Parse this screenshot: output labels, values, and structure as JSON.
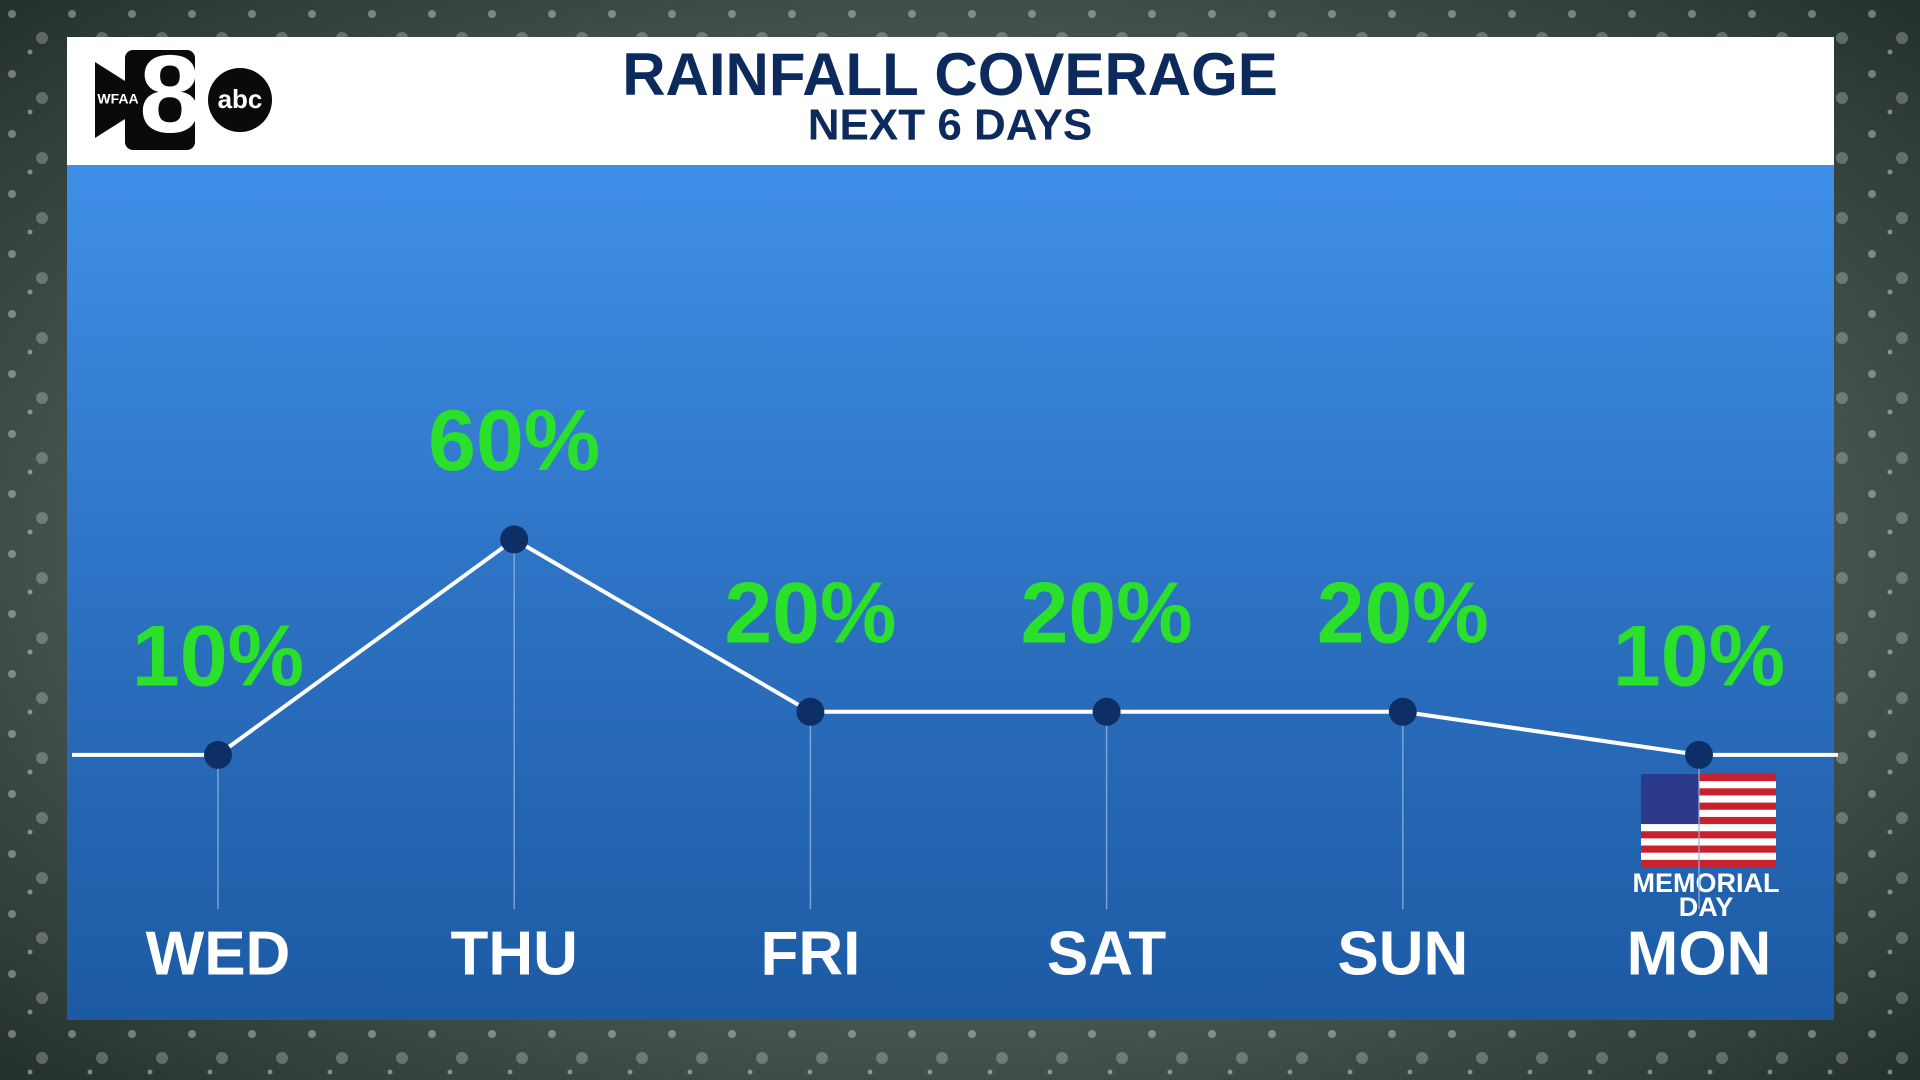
{
  "logo": {
    "station": "WFAA",
    "number": "8",
    "network": "abc"
  },
  "chart_data": {
    "type": "line",
    "title": "RAINFALL COVERAGE",
    "subtitle": "NEXT 6 DAYS",
    "categories": [
      "WED",
      "THU",
      "FRI",
      "SAT",
      "SUN",
      "MON"
    ],
    "values": [
      10,
      60,
      20,
      20,
      20,
      10
    ],
    "value_labels": [
      "10%",
      "60%",
      "20%",
      "20%",
      "20%",
      "10%"
    ],
    "color": "#ffffff",
    "label_color": "#2be02b",
    "annotation": [
      "MEMORIAL",
      "DAY"
    ]
  }
}
